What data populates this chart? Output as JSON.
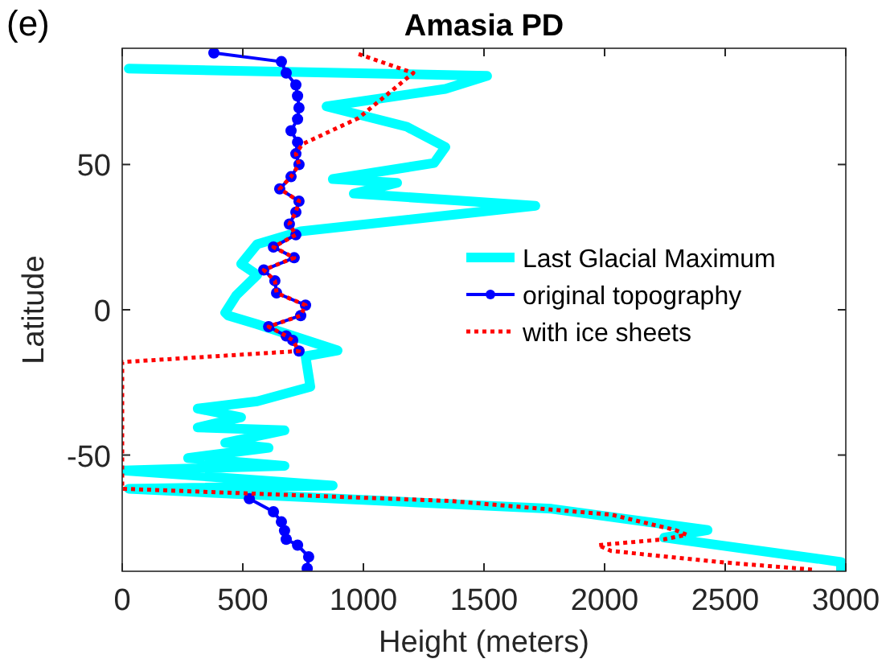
{
  "chart_data": {
    "type": "line",
    "title": "Amasia PD",
    "xlabel": "Height (meters)",
    "ylabel": "Latitude",
    "annotations": [
      "(e)"
    ],
    "xlim": [
      0,
      3000
    ],
    "xticks": [
      0,
      500,
      1000,
      1500,
      2000,
      2500,
      3000
    ],
    "ylim": [
      -90,
      90
    ],
    "yticks": [
      -50,
      0,
      50
    ],
    "grid": false,
    "legend": "right",
    "series": [
      {
        "name": "Last Glacial Maximum",
        "color": "#00ffff",
        "marker": "none",
        "line_style": "solid",
        "x": [
          27,
          1513,
          1340,
          847,
          1180,
          1340,
          1293,
          873,
          1140,
          960,
          1713,
          740,
          560,
          493,
          560,
          473,
          427,
          440,
          560,
          893,
          760,
          780,
          560,
          313,
          493,
          313,
          673,
          427,
          607,
          273,
          673,
          7,
          873,
          27,
          1780,
          2427,
          2247,
          2980,
          2980
        ],
        "values": [
          83,
          80.5,
          76,
          70,
          63,
          56,
          50.5,
          45,
          43.7,
          40,
          35.8,
          27,
          22.6,
          15.8,
          12,
          5,
          -1,
          -2,
          -5,
          -14,
          -16,
          -26.5,
          -31.5,
          -34,
          -37,
          -40.5,
          -41.5,
          -45.8,
          -47.5,
          -51,
          -53.7,
          -55.3,
          -60.5,
          -61.6,
          -68.5,
          -75.8,
          -78.4,
          -86.8,
          -89.5
        ]
      },
      {
        "name": "original topography",
        "color": "#0000ff",
        "marker": "circle",
        "line_style": "solid",
        "x": [
          380,
          660,
          680,
          720,
          727,
          733,
          727,
          700,
          727,
          720,
          733,
          700,
          653,
          733,
          720,
          693,
          720,
          627,
          713,
          587,
          633,
          640,
          760,
          740,
          607,
          680,
          707,
          733,
          null,
          527,
          627,
          660,
          673,
          680,
          727,
          773,
          767
        ],
        "values": [
          88.4,
          85.4,
          81.5,
          77.4,
          73.6,
          69.5,
          65.6,
          61.6,
          57.7,
          53.7,
          50,
          45.8,
          41.6,
          37.4,
          33.6,
          29.5,
          25.8,
          21.6,
          17.9,
          13.7,
          10,
          5.8,
          1.6,
          -2,
          -5.8,
          -9,
          -10.5,
          -14.2,
          null,
          -65,
          -69.5,
          -73,
          -76,
          -79,
          -81,
          -85,
          -89
        ]
      },
      {
        "name": "with ice sheets",
        "color": "#ff0000",
        "marker": "none",
        "line_style": "dotted",
        "x": [
          980,
          1207,
          980,
          747,
          720,
          733,
          700,
          653,
          733,
          720,
          693,
          720,
          627,
          713,
          587,
          633,
          640,
          760,
          740,
          607,
          680,
          707,
          733,
          0,
          0,
          1360,
          2027,
          2293,
          2340,
          2247,
          1973,
          2027,
          2473,
          2873
        ],
        "values": [
          88,
          81.5,
          66,
          57,
          53.7,
          50,
          45.8,
          41.6,
          37.4,
          33.6,
          29.5,
          25.8,
          21.6,
          17.9,
          13.7,
          10,
          5.8,
          1.6,
          -2,
          -5.8,
          -9,
          -10.5,
          -14.2,
          -18,
          -61.6,
          -65.8,
          -70.5,
          -75.8,
          -77.4,
          -79,
          -81,
          -83,
          -86.8,
          -89.5
        ]
      }
    ]
  }
}
